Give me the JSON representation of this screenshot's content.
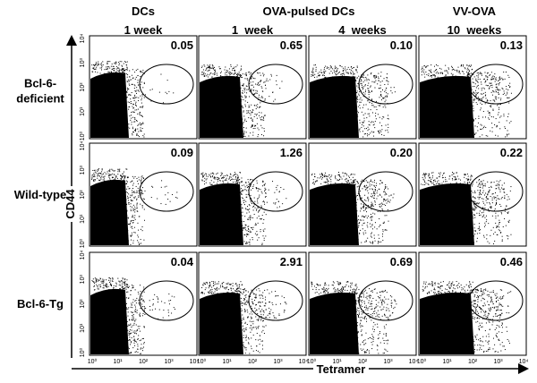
{
  "columns": {
    "groups": [
      "DCs",
      "OVA-pulsed DCs",
      "VV-OVA"
    ],
    "times": [
      "1 week",
      "1  week",
      "4  weeks",
      "10  weeks"
    ]
  },
  "rows": [
    {
      "label": [
        "Bcl-6-",
        "deficient"
      ],
      "values": [
        "0.05",
        "0.65",
        "0.10",
        "0.13"
      ]
    },
    {
      "label": [
        "Wild-type"
      ],
      "values": [
        "0.09",
        "1.26",
        "0.20",
        "0.22"
      ]
    },
    {
      "label": [
        "Bcl-6-Tg"
      ],
      "values": [
        "0.04",
        "2.91",
        "0.69",
        "0.46"
      ]
    }
  ],
  "axes": {
    "y": "CD44",
    "x": "Tetramer"
  },
  "ticks": [
    "10⁰",
    "10¹",
    "10²",
    "10³",
    "10⁴"
  ]
}
